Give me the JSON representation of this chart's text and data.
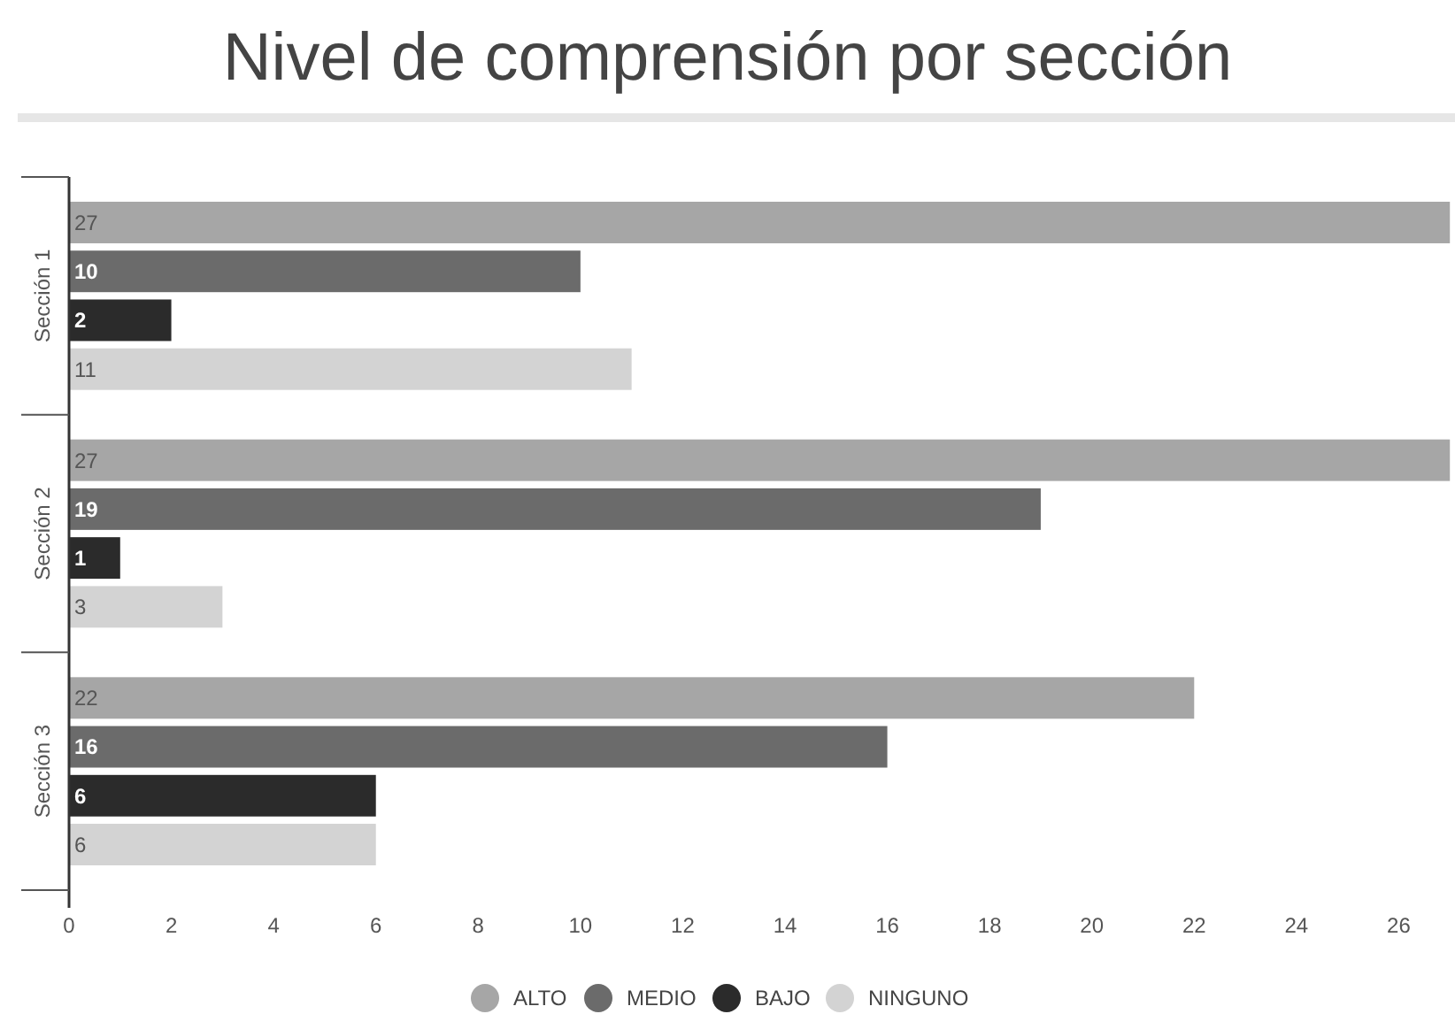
{
  "chart_data": {
    "type": "bar",
    "orientation": "horizontal",
    "title": "Nivel de comprensión por sección",
    "categories": [
      "Sección 1",
      "Sección 2",
      "Sección 3"
    ],
    "series": [
      {
        "name": "ALTO",
        "color": "#a6a6a6",
        "values": [
          27,
          27,
          22
        ]
      },
      {
        "name": "MEDIO",
        "color": "#6b6b6b",
        "values": [
          10,
          19,
          16
        ]
      },
      {
        "name": "BAJO",
        "color": "#2b2b2b",
        "values": [
          2,
          1,
          6
        ]
      },
      {
        "name": "NINGUNO",
        "color": "#d3d3d3",
        "values": [
          11,
          3,
          6
        ]
      }
    ],
    "xlim": [
      0,
      27.1
    ],
    "xticks": [
      0,
      2,
      4,
      6,
      8,
      10,
      12,
      14,
      16,
      18,
      20,
      22,
      24,
      26
    ],
    "data_labels": true,
    "legend": "bottom",
    "grid": false
  }
}
